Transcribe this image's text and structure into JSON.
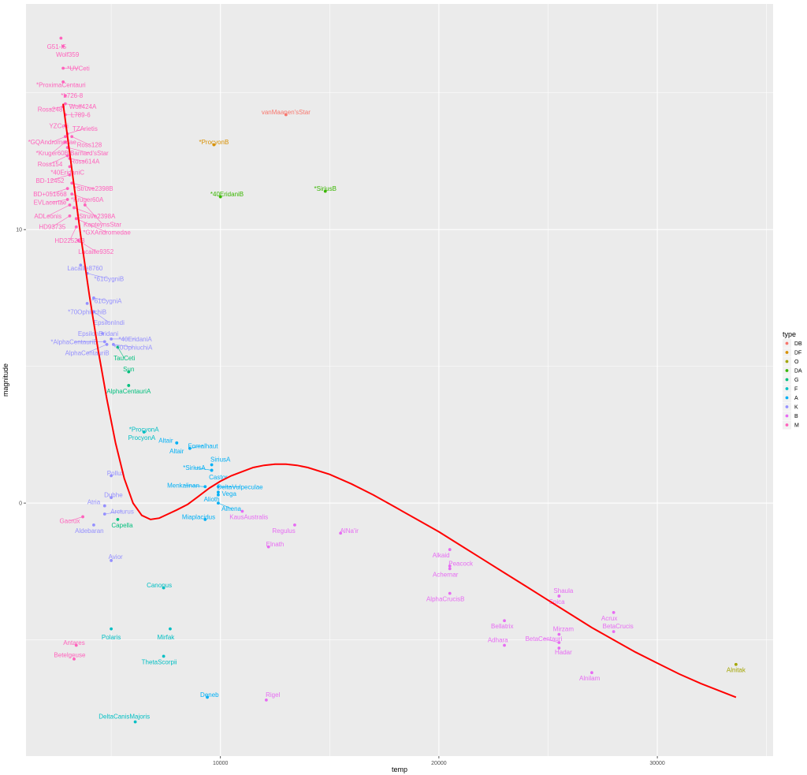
{
  "chart_data": {
    "type": "scatter",
    "title": "",
    "xlabel": "temp",
    "ylabel": "magnitude",
    "xlim": [
      1100,
      35300
    ],
    "ylim": [
      -9.25,
      18.25
    ],
    "x_ticks": [
      {
        "value": 10000,
        "label": "10000"
      },
      {
        "value": 20000,
        "label": "20000"
      },
      {
        "value": 30000,
        "label": "30000"
      }
    ],
    "y_ticks": [
      {
        "value": 0,
        "label": "0"
      },
      {
        "value": 10,
        "label": "10"
      }
    ],
    "grid": true,
    "legend": {
      "title": "type",
      "position": "right",
      "entries": [
        {
          "type": "DB",
          "color": "#F8766D"
        },
        {
          "type": "DF",
          "color": "#D89000"
        },
        {
          "type": "O",
          "color": "#A3A500"
        },
        {
          "type": "DA",
          "color": "#39B600"
        },
        {
          "type": "G",
          "color": "#00BF7D"
        },
        {
          "type": "F",
          "color": "#00BFC4"
        },
        {
          "type": "A",
          "color": "#00B0F6"
        },
        {
          "type": "K",
          "color": "#9590FF"
        },
        {
          "type": "B",
          "color": "#E76BF3"
        },
        {
          "type": "M",
          "color": "#FF62BC"
        }
      ]
    },
    "points": [
      {
        "name": "G51-I5",
        "temp": 2700,
        "magnitude": 17.0,
        "type": "M",
        "lx": 2500,
        "ly": 16.7
      },
      {
        "name": "Wolf359",
        "temp": 2800,
        "magnitude": 16.7,
        "type": "M",
        "lx": 3000,
        "ly": 16.4
      },
      {
        "name": "*UVCeti",
        "temp": 2800,
        "magnitude": 15.9,
        "type": "M",
        "lx": 3500,
        "ly": 15.9
      },
      {
        "name": "*ProximaCentauri",
        "temp": 2800,
        "magnitude": 15.4,
        "type": "M",
        "lx": 2700,
        "ly": 15.3
      },
      {
        "name": "*L726-8",
        "temp": 2900,
        "magnitude": 14.9,
        "type": "M",
        "lx": 3200,
        "ly": 14.9
      },
      {
        "name": "Wolf424A",
        "temp": 2900,
        "magnitude": 14.6,
        "type": "M",
        "lx": 3700,
        "ly": 14.5
      },
      {
        "name": "Ross248",
        "temp": 2800,
        "magnitude": 14.5,
        "type": "M",
        "lx": 2200,
        "ly": 14.4
      },
      {
        "name": "L789-6",
        "temp": 2900,
        "magnitude": 14.2,
        "type": "M",
        "lx": 3600,
        "ly": 14.2
      },
      {
        "name": "YZCeti",
        "temp": 2900,
        "magnitude": 13.8,
        "type": "M",
        "lx": 2600,
        "ly": 13.8
      },
      {
        "name": "TZArietis",
        "temp": 3000,
        "magnitude": 13.5,
        "type": "M",
        "lx": 3800,
        "ly": 13.7
      },
      {
        "name": "*GQAndromedae",
        "temp": 2900,
        "magnitude": 13.4,
        "type": "M",
        "lx": 2300,
        "ly": 13.2
      },
      {
        "name": "Ross128",
        "temp": 3200,
        "magnitude": 13.4,
        "type": "M",
        "lx": 4000,
        "ly": 13.1
      },
      {
        "name": "*Kruger60B",
        "temp": 2900,
        "magnitude": 13.2,
        "type": "M",
        "lx": 2300,
        "ly": 12.8
      },
      {
        "name": "Barnard'sStar",
        "temp": 3000,
        "magnitude": 13.0,
        "type": "M",
        "lx": 4000,
        "ly": 12.8
      },
      {
        "name": "Ross154",
        "temp": 3000,
        "magnitude": 12.7,
        "type": "M",
        "lx": 2200,
        "ly": 12.4
      },
      {
        "name": "Ross614A",
        "temp": 3100,
        "magnitude": 12.6,
        "type": "M",
        "lx": 3800,
        "ly": 12.5
      },
      {
        "name": "*40EridaniC",
        "temp": 3100,
        "magnitude": 12.3,
        "type": "M",
        "lx": 3000,
        "ly": 12.1
      },
      {
        "name": "BD-12452",
        "temp": 3100,
        "magnitude": 12.0,
        "type": "M",
        "lx": 2200,
        "ly": 11.8
      },
      {
        "name": "*Struve2398B",
        "temp": 3200,
        "magnitude": 11.7,
        "type": "M",
        "lx": 4200,
        "ly": 11.5
      },
      {
        "name": "BD+051668",
        "temp": 3000,
        "magnitude": 11.5,
        "type": "M",
        "lx": 2200,
        "ly": 11.3
      },
      {
        "name": "*Kruger60A",
        "temp": 3200,
        "magnitude": 11.3,
        "type": "M",
        "lx": 3900,
        "ly": 11.1
      },
      {
        "name": "EVLacertae",
        "temp": 3000,
        "magnitude": 11.1,
        "type": "M",
        "lx": 2200,
        "ly": 11.0
      },
      {
        "name": "ADLeonis",
        "temp": 3100,
        "magnitude": 10.9,
        "type": "M",
        "lx": 2100,
        "ly": 10.5
      },
      {
        "name": "*Struve2398A",
        "temp": 3300,
        "magnitude": 10.8,
        "type": "M",
        "lx": 4300,
        "ly": 10.5
      },
      {
        "name": "HD93735",
        "temp": 3100,
        "magnitude": 10.5,
        "type": "M",
        "lx": 2300,
        "ly": 10.1
      },
      {
        "name": "KapteynsStar",
        "temp": 3800,
        "magnitude": 10.9,
        "type": "M",
        "lx": 4600,
        "ly": 10.2
      },
      {
        "name": "*GXAndromedae",
        "temp": 3400,
        "magnitude": 10.4,
        "type": "M",
        "lx": 4800,
        "ly": 9.9
      },
      {
        "name": "HD225213",
        "temp": 3400,
        "magnitude": 10.1,
        "type": "M",
        "lx": 3100,
        "ly": 9.6
      },
      {
        "name": "Lacaille9352",
        "temp": 3500,
        "magnitude": 9.6,
        "type": "M",
        "lx": 4300,
        "ly": 9.2
      },
      {
        "name": "vanMaanen'sStar",
        "temp": 13000,
        "magnitude": 14.2,
        "type": "DB",
        "lx": 13000,
        "ly": 14.3
      },
      {
        "name": "*ProcyonB",
        "temp": 9700,
        "magnitude": 13.1,
        "type": "DF",
        "lx": 9700,
        "ly": 13.2
      },
      {
        "name": "*40EridaniB",
        "temp": 10000,
        "magnitude": 11.2,
        "type": "DA",
        "lx": 10300,
        "ly": 11.3
      },
      {
        "name": "*SiriusB",
        "temp": 14800,
        "magnitude": 11.4,
        "type": "DA",
        "lx": 14800,
        "ly": 11.5
      },
      {
        "name": "Lacaille8760",
        "temp": 3600,
        "magnitude": 8.7,
        "type": "K",
        "lx": 3800,
        "ly": 8.6
      },
      {
        "name": "*61CygniB",
        "temp": 3900,
        "magnitude": 8.4,
        "type": "K",
        "lx": 4900,
        "ly": 8.2
      },
      {
        "name": "*61CygniA",
        "temp": 4200,
        "magnitude": 7.5,
        "type": "K",
        "lx": 4800,
        "ly": 7.4
      },
      {
        "name": "*70OphiuchiB",
        "temp": 3900,
        "magnitude": 7.3,
        "type": "K",
        "lx": 3900,
        "ly": 7.0
      },
      {
        "name": "EpsilonIndi",
        "temp": 4200,
        "magnitude": 7.0,
        "type": "K",
        "lx": 4900,
        "ly": 6.6
      },
      {
        "name": "EpsilonEridani",
        "temp": 4600,
        "magnitude": 6.2,
        "type": "K",
        "lx": 4400,
        "ly": 6.2
      },
      {
        "name": "*40EridaniA",
        "temp": 5000,
        "magnitude": 6.0,
        "type": "K",
        "lx": 6100,
        "ly": 6.0
      },
      {
        "name": "*AlphaCentauriB",
        "temp": 4700,
        "magnitude": 5.9,
        "type": "K",
        "lx": 3300,
        "ly": 5.9
      },
      {
        "name": "*70OphiuchiA",
        "temp": 5100,
        "magnitude": 5.8,
        "type": "K",
        "lx": 6000,
        "ly": 5.7
      },
      {
        "name": "AlphaCentauriB",
        "temp": 4800,
        "magnitude": 5.8,
        "type": "K",
        "lx": 3900,
        "ly": 5.5
      },
      {
        "name": "TauCeti",
        "temp": 5300,
        "magnitude": 5.7,
        "type": "G",
        "lx": 5600,
        "ly": 5.3
      },
      {
        "name": "Sun",
        "temp": 5800,
        "magnitude": 4.8,
        "type": "G",
        "lx": 5800,
        "ly": 4.9
      },
      {
        "name": "AlphaCentauriA",
        "temp": 5800,
        "magnitude": 4.3,
        "type": "G",
        "lx": 5800,
        "ly": 4.1
      },
      {
        "name": "*ProcyonA",
        "temp": 6500,
        "magnitude": 2.6,
        "type": "F",
        "lx": 6500,
        "ly": 2.7
      },
      {
        "name": "ProcyonA",
        "temp": 6500,
        "magnitude": 2.6,
        "type": "F",
        "lx": 6400,
        "ly": 2.4
      },
      {
        "name": "Altair",
        "temp": 8000,
        "magnitude": 2.2,
        "type": "A",
        "lx": 7500,
        "ly": 2.3
      },
      {
        "name": "Altair",
        "temp": 8000,
        "magnitude": 2.2,
        "type": "A",
        "lx": 8000,
        "ly": 1.9
      },
      {
        "name": "Fomalhaut",
        "temp": 8600,
        "magnitude": 2.0,
        "type": "A",
        "lx": 9200,
        "ly": 2.1
      },
      {
        "name": "SiriusA",
        "temp": 9600,
        "magnitude": 1.4,
        "type": "A",
        "lx": 10000,
        "ly": 1.6
      },
      {
        "name": "*SiriusA",
        "temp": 9600,
        "magnitude": 1.2,
        "type": "A",
        "lx": 8800,
        "ly": 1.3
      },
      {
        "name": "Castor",
        "temp": 9600,
        "magnitude": 1.2,
        "type": "A",
        "lx": 9900,
        "ly": 0.95
      },
      {
        "name": "Menkalinan",
        "temp": 9300,
        "magnitude": 0.6,
        "type": "A",
        "lx": 8300,
        "ly": 0.65
      },
      {
        "name": "DeltaVulpeculae",
        "temp": 9900,
        "magnitude": 0.6,
        "type": "A",
        "lx": 10900,
        "ly": 0.6
      },
      {
        "name": "Vega",
        "temp": 9900,
        "magnitude": 0.4,
        "type": "A",
        "lx": 10400,
        "ly": 0.35
      },
      {
        "name": "Alioth",
        "temp": 9900,
        "magnitude": 0.3,
        "type": "A",
        "lx": 9600,
        "ly": 0.15
      },
      {
        "name": "Alhena",
        "temp": 9900,
        "magnitude": 0.0,
        "type": "A",
        "lx": 10500,
        "ly": -0.2
      },
      {
        "name": "Miaplacidus",
        "temp": 9300,
        "magnitude": -0.6,
        "type": "A",
        "lx": 9000,
        "ly": -0.5
      },
      {
        "name": "Polaris",
        "temp": 5000,
        "magnitude": -4.6,
        "type": "F",
        "lx": 5000,
        "ly": -4.9
      },
      {
        "name": "Mirfak",
        "temp": 7700,
        "magnitude": -4.6,
        "type": "F",
        "lx": 7500,
        "ly": -4.9
      },
      {
        "name": "Canopus",
        "temp": 7400,
        "magnitude": -3.1,
        "type": "F",
        "lx": 7200,
        "ly": -3.0
      },
      {
        "name": "ThetaScorpii",
        "temp": 7400,
        "magnitude": -5.6,
        "type": "F",
        "lx": 7200,
        "ly": -5.8
      },
      {
        "name": "DeltaCanisMajoris",
        "temp": 6100,
        "magnitude": -8.0,
        "type": "F",
        "lx": 5600,
        "ly": -7.8
      },
      {
        "name": "Deneb",
        "temp": 9400,
        "magnitude": -7.1,
        "type": "A",
        "lx": 9500,
        "ly": -7.0
      },
      {
        "name": "Pollux",
        "temp": 5000,
        "magnitude": 1.0,
        "type": "K",
        "lx": 5200,
        "ly": 1.1
      },
      {
        "name": "Dubhe",
        "temp": 5000,
        "magnitude": 0.2,
        "type": "K",
        "lx": 5100,
        "ly": 0.3
      },
      {
        "name": "Atria",
        "temp": 4700,
        "magnitude": -0.1,
        "type": "K",
        "lx": 4200,
        "ly": 0.05
      },
      {
        "name": "Arcturus",
        "temp": 4700,
        "magnitude": -0.4,
        "type": "K",
        "lx": 5500,
        "ly": -0.3
      },
      {
        "name": "Gacrux",
        "temp": 3700,
        "magnitude": -0.5,
        "type": "M",
        "lx": 3100,
        "ly": -0.65
      },
      {
        "name": "Capella",
        "temp": 5300,
        "magnitude": -0.6,
        "type": "G",
        "lx": 5500,
        "ly": -0.8
      },
      {
        "name": "Aldebaran",
        "temp": 4200,
        "magnitude": -0.8,
        "type": "K",
        "lx": 4000,
        "ly": -1.0
      },
      {
        "name": "Avior",
        "temp": 5000,
        "magnitude": -2.1,
        "type": "K",
        "lx": 5200,
        "ly": -1.95
      },
      {
        "name": "Antares",
        "temp": 3400,
        "magnitude": -5.2,
        "type": "M",
        "lx": 3300,
        "ly": -5.1
      },
      {
        "name": "Betelgeuse",
        "temp": 3300,
        "magnitude": -5.7,
        "type": "M",
        "lx": 3100,
        "ly": -5.55
      },
      {
        "name": "KausAustralis",
        "temp": 11000,
        "magnitude": -0.3,
        "type": "B",
        "lx": 11300,
        "ly": -0.5
      },
      {
        "name": "Regulus",
        "temp": 13400,
        "magnitude": -0.8,
        "type": "B",
        "lx": 12900,
        "ly": -1.0
      },
      {
        "name": "AlNa'ir",
        "temp": 15500,
        "magnitude": -1.1,
        "type": "B",
        "lx": 15900,
        "ly": -1.0
      },
      {
        "name": "Elnath",
        "temp": 12200,
        "magnitude": -1.6,
        "type": "B",
        "lx": 12500,
        "ly": -1.5
      },
      {
        "name": "Alkaid",
        "temp": 20500,
        "magnitude": -1.7,
        "type": "B",
        "lx": 20100,
        "ly": -1.9
      },
      {
        "name": "Peacock",
        "temp": 20500,
        "magnitude": -2.3,
        "type": "B",
        "lx": 21000,
        "ly": -2.2
      },
      {
        "name": "Achernar",
        "temp": 20500,
        "magnitude": -2.4,
        "type": "B",
        "lx": 20300,
        "ly": -2.6
      },
      {
        "name": "AlphaCrucisB",
        "temp": 20500,
        "magnitude": -3.3,
        "type": "B",
        "lx": 20300,
        "ly": -3.5
      },
      {
        "name": "Shaula",
        "temp": 25500,
        "magnitude": -3.4,
        "type": "B",
        "lx": 25700,
        "ly": -3.2
      },
      {
        "name": "Spica",
        "temp": 25500,
        "magnitude": -3.4,
        "type": "B",
        "lx": 25400,
        "ly": -3.6
      },
      {
        "name": "Acrux",
        "temp": 28000,
        "magnitude": -4.0,
        "type": "B",
        "lx": 27800,
        "ly": -4.2
      },
      {
        "name": "BetaCrucis",
        "temp": 28000,
        "magnitude": -4.7,
        "type": "B",
        "lx": 28200,
        "ly": -4.5
      },
      {
        "name": "Bellatrix",
        "temp": 23000,
        "magnitude": -4.3,
        "type": "B",
        "lx": 22900,
        "ly": -4.5
      },
      {
        "name": "Mirzam",
        "temp": 25500,
        "magnitude": -4.8,
        "type": "B",
        "lx": 25700,
        "ly": -4.6
      },
      {
        "name": "Adhara",
        "temp": 23000,
        "magnitude": -5.2,
        "type": "B",
        "lx": 22700,
        "ly": -5.0
      },
      {
        "name": "BetaCentauri",
        "temp": 25500,
        "magnitude": -5.1,
        "type": "B",
        "lx": 24800,
        "ly": -4.95
      },
      {
        "name": "Hadar",
        "temp": 25500,
        "magnitude": -5.3,
        "type": "B",
        "lx": 25700,
        "ly": -5.45
      },
      {
        "name": "Alnilam",
        "temp": 27000,
        "magnitude": -6.2,
        "type": "B",
        "lx": 26900,
        "ly": -6.4
      },
      {
        "name": "Rigel",
        "temp": 12100,
        "magnitude": -7.2,
        "type": "B",
        "lx": 12400,
        "ly": -7.0
      },
      {
        "name": "Alnitak",
        "temp": 33600,
        "magnitude": -5.9,
        "type": "O",
        "lx": 33600,
        "ly": -6.1
      }
    ],
    "trend_curve": {
      "color": "#FF0000",
      "x": [
        2800,
        3200,
        3600,
        4000,
        4400,
        4800,
        5200,
        5600,
        6000,
        6400,
        6800,
        7200,
        7600,
        8000,
        8500,
        9000,
        9500,
        10000,
        10500,
        11000,
        11500,
        12000,
        12500,
        13000,
        13500,
        14000,
        15000,
        16000,
        17000,
        18000,
        19000,
        20000,
        21000,
        22000,
        23000,
        24000,
        25000,
        26000,
        27000,
        28000,
        29000,
        30000,
        31000,
        32000,
        33600
      ],
      "y": [
        14.6,
        12.2,
        9.8,
        7.6,
        5.6,
        3.8,
        2.2,
        0.9,
        0.0,
        -0.45,
        -0.6,
        -0.55,
        -0.4,
        -0.25,
        -0.05,
        0.25,
        0.55,
        0.8,
        1.0,
        1.15,
        1.3,
        1.38,
        1.42,
        1.42,
        1.38,
        1.3,
        1.05,
        0.7,
        0.3,
        -0.15,
        -0.6,
        -1.05,
        -1.55,
        -2.05,
        -2.55,
        -3.05,
        -3.55,
        -4.05,
        -4.55,
        -5.0,
        -5.45,
        -5.85,
        -6.25,
        -6.6,
        -7.1
      ]
    }
  }
}
